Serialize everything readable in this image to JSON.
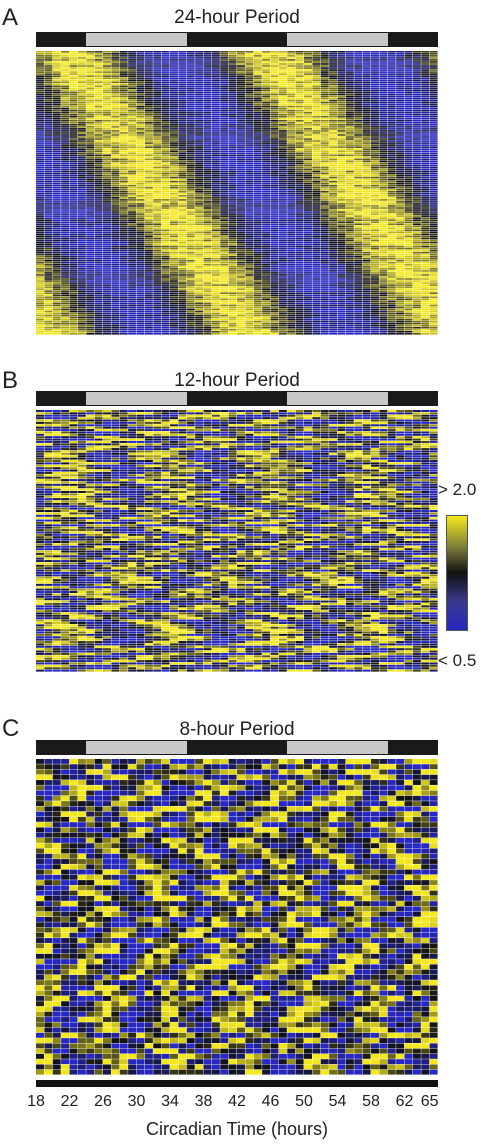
{
  "chart_data": [
    {
      "type": "heatmap",
      "panel": "A",
      "title": "24-hour Period",
      "period_hours": 24,
      "light_dark_pattern": [
        "dark",
        "light",
        "dark",
        "light",
        "dark"
      ],
      "ld_boundaries": [
        18,
        24,
        36,
        48,
        60,
        66
      ],
      "colorscale": {
        "low": "#2727c4",
        "mid": "#111111",
        "high": "#f4e81c",
        "low_label": "< 0.5",
        "high_label": "> 2.0"
      }
    },
    {
      "type": "heatmap",
      "panel": "B",
      "title": "12-hour Period",
      "period_hours": 12,
      "light_dark_pattern": [
        "dark",
        "light",
        "dark",
        "light",
        "dark"
      ],
      "ld_boundaries": [
        18,
        24,
        36,
        48,
        60,
        66
      ]
    },
    {
      "type": "heatmap",
      "panel": "C",
      "title": "8-hour Period",
      "period_hours": 8,
      "light_dark_pattern": [
        "dark",
        "light",
        "dark",
        "light",
        "dark"
      ],
      "ld_boundaries": [
        18,
        24,
        36,
        48,
        60,
        66
      ],
      "xlabel": "Circadian Time (hours)",
      "xticks": [
        18,
        22,
        26,
        30,
        34,
        38,
        42,
        46,
        50,
        54,
        58,
        62,
        65
      ]
    }
  ],
  "legend": {
    "high_label": "> 2.0",
    "low_label": "< 0.5"
  },
  "colors": {
    "high": "#f4e81c",
    "mid": "#111111",
    "low": "#2727c4",
    "light_phase": "#c8c8c8",
    "dark_phase": "#1a1a1a"
  }
}
